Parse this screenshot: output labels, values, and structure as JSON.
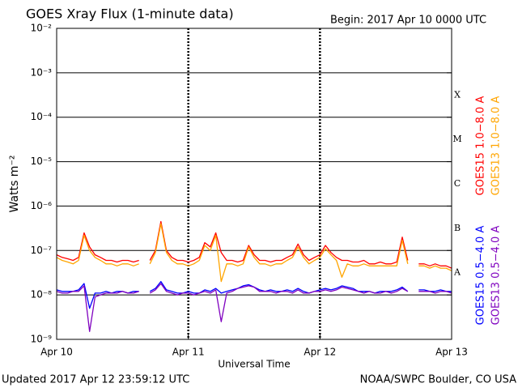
{
  "chart_data": {
    "type": "line",
    "title": "GOES Xray Flux (1-minute data)",
    "subtitle": "Begin:  2017 Apr 10 0000 UTC",
    "y_label": "Watts m⁻²",
    "x_label": "Universal Time",
    "footer_left": "Updated 2017 Apr 12 23:59:12 UTC",
    "footer_right": "NOAA/SWPC Boulder, CO USA",
    "log_y": true,
    "grid": true,
    "xlim": [
      0,
      72
    ],
    "xticks": [
      {
        "value": 0,
        "label": "Apr 10"
      },
      {
        "value": 24,
        "label": "Apr 11"
      },
      {
        "value": 48,
        "label": "Apr 12"
      },
      {
        "value": 72,
        "label": "Apr 13"
      }
    ],
    "ylim": [
      1e-09,
      0.01
    ],
    "yticks": [
      {
        "value": 1e-09,
        "label": "10⁻⁹"
      },
      {
        "value": 1e-08,
        "label": "10⁻⁸"
      },
      {
        "value": 1e-07,
        "label": "10⁻⁷"
      },
      {
        "value": 1e-06,
        "label": "10⁻⁶"
      },
      {
        "value": 1e-05,
        "label": "10⁻⁵"
      },
      {
        "value": 0.0001,
        "label": "10⁻⁴"
      },
      {
        "value": 0.001,
        "label": "10⁻³"
      },
      {
        "value": 0.01,
        "label": "10⁻²"
      }
    ],
    "flare_classes": [
      {
        "label": "A",
        "value": 1e-08
      },
      {
        "label": "B",
        "value": 1e-07
      },
      {
        "label": "C",
        "value": 1e-06
      },
      {
        "label": "M",
        "value": 1e-05
      },
      {
        "label": "X",
        "value": 0.0001
      }
    ],
    "x": [
      0,
      1,
      2,
      3,
      4,
      5,
      6,
      7,
      8,
      9,
      10,
      11,
      12,
      13,
      14,
      15,
      16,
      17,
      18,
      19,
      20,
      21,
      22,
      23,
      24,
      25,
      26,
      27,
      28,
      29,
      30,
      31,
      32,
      33,
      34,
      35,
      36,
      37,
      38,
      39,
      40,
      41,
      42,
      43,
      44,
      45,
      46,
      47,
      48,
      49,
      50,
      51,
      52,
      53,
      54,
      55,
      56,
      57,
      58,
      59,
      60,
      61,
      62,
      63,
      64,
      65,
      66,
      67,
      68,
      69,
      70,
      71,
      72
    ],
    "series": [
      {
        "name": "GOES15 1.0−8.0 A",
        "color": "#ff0000",
        "values": [
          8e-08,
          7e-08,
          6.5e-08,
          6e-08,
          7e-08,
          2.5e-07,
          1.2e-07,
          8e-08,
          7e-08,
          6e-08,
          6e-08,
          5.5e-08,
          6e-08,
          6e-08,
          5.5e-08,
          6e-08,
          null,
          6e-08,
          1e-07,
          4.5e-07,
          1e-07,
          7e-08,
          6e-08,
          6e-08,
          5.5e-08,
          6e-08,
          7e-08,
          1.5e-07,
          1.2e-07,
          2.5e-07,
          9e-08,
          6e-08,
          6e-08,
          5.5e-08,
          6e-08,
          1.3e-07,
          8e-08,
          6e-08,
          6e-08,
          5.5e-08,
          6e-08,
          6e-08,
          7e-08,
          8e-08,
          1.4e-07,
          8e-08,
          6e-08,
          7e-08,
          8e-08,
          1.3e-07,
          9e-08,
          7e-08,
          6e-08,
          6e-08,
          5.5e-08,
          5.5e-08,
          6e-08,
          5e-08,
          5e-08,
          5.5e-08,
          5e-08,
          5e-08,
          5.5e-08,
          2e-07,
          6e-08,
          null,
          5e-08,
          5e-08,
          4.5e-08,
          5e-08,
          4.5e-08,
          4.5e-08,
          4e-08
        ]
      },
      {
        "name": "GOES13 1.0−8.0 A",
        "color": "#ffa500",
        "values": [
          7e-08,
          6e-08,
          5.5e-08,
          5e-08,
          6e-08,
          2.2e-07,
          1e-07,
          7e-08,
          6e-08,
          5e-08,
          5e-08,
          4.5e-08,
          5e-08,
          5e-08,
          4.5e-08,
          5e-08,
          null,
          5e-08,
          9e-08,
          4e-07,
          9e-08,
          6e-08,
          5e-08,
          5e-08,
          4.5e-08,
          5e-08,
          6e-08,
          1.3e-07,
          1e-07,
          2.2e-07,
          2e-08,
          5e-08,
          5e-08,
          4.5e-08,
          5e-08,
          1.2e-07,
          7e-08,
          5e-08,
          5e-08,
          4.5e-08,
          5e-08,
          5e-08,
          6e-08,
          7e-08,
          1.2e-07,
          7e-08,
          5e-08,
          6e-08,
          7e-08,
          1.1e-07,
          8e-08,
          6e-08,
          2.5e-08,
          5e-08,
          4.5e-08,
          4.5e-08,
          5e-08,
          4.5e-08,
          4.5e-08,
          4.5e-08,
          4.5e-08,
          4.5e-08,
          4.5e-08,
          1.7e-07,
          5e-08,
          null,
          4.5e-08,
          4.5e-08,
          4e-08,
          4.5e-08,
          4e-08,
          4e-08,
          3.5e-08
        ]
      },
      {
        "name": "GOES15 0.5−4.0 A",
        "color": "#0000ff",
        "values": [
          1.3e-08,
          1.2e-08,
          1.2e-08,
          1.2e-08,
          1.3e-08,
          1.8e-08,
          5e-09,
          1.1e-08,
          1.1e-08,
          1.2e-08,
          1.1e-08,
          1.2e-08,
          1.2e-08,
          1.1e-08,
          1.2e-08,
          1.2e-08,
          null,
          1.2e-08,
          1.4e-08,
          2e-08,
          1.3e-08,
          1.2e-08,
          1.1e-08,
          1.1e-08,
          1.2e-08,
          1.1e-08,
          1.1e-08,
          1.3e-08,
          1.2e-08,
          1.4e-08,
          1.1e-08,
          1.2e-08,
          1.3e-08,
          1.4e-08,
          1.6e-08,
          1.7e-08,
          1.5e-08,
          1.3e-08,
          1.2e-08,
          1.3e-08,
          1.2e-08,
          1.2e-08,
          1.3e-08,
          1.2e-08,
          1.4e-08,
          1.2e-08,
          1.1e-08,
          1.2e-08,
          1.3e-08,
          1.4e-08,
          1.3e-08,
          1.4e-08,
          1.6e-08,
          1.5e-08,
          1.4e-08,
          1.2e-08,
          1.2e-08,
          1.2e-08,
          1.1e-08,
          1.2e-08,
          1.2e-08,
          1.2e-08,
          1.3e-08,
          1.5e-08,
          1.2e-08,
          null,
          1.3e-08,
          1.3e-08,
          1.2e-08,
          1.2e-08,
          1.3e-08,
          1.2e-08,
          1.2e-08
        ]
      },
      {
        "name": "GOES13 0.5−4.0 A",
        "color": "#7f00bf",
        "values": [
          1.2e-08,
          1.1e-08,
          1.1e-08,
          1.2e-08,
          1.2e-08,
          1.6e-08,
          1.5e-09,
          9e-09,
          1e-08,
          1.1e-08,
          1.1e-08,
          1.1e-08,
          1.2e-08,
          1.1e-08,
          1.1e-08,
          1.2e-08,
          null,
          1.1e-08,
          1.3e-08,
          1.8e-08,
          1.2e-08,
          1.1e-08,
          1e-08,
          1.1e-08,
          1.1e-08,
          1e-08,
          1.1e-08,
          1.2e-08,
          1.1e-08,
          1.3e-08,
          2.5e-09,
          1.1e-08,
          1.2e-08,
          1.4e-08,
          1.5e-08,
          1.6e-08,
          1.5e-08,
          1.2e-08,
          1.2e-08,
          1.2e-08,
          1.1e-08,
          1.2e-08,
          1.2e-08,
          1.1e-08,
          1.3e-08,
          1.1e-08,
          1.1e-08,
          1.2e-08,
          1.2e-08,
          1.3e-08,
          1.2e-08,
          1.3e-08,
          1.5e-08,
          1.4e-08,
          1.3e-08,
          1.2e-08,
          1.1e-08,
          1.2e-08,
          1.1e-08,
          1.1e-08,
          1.2e-08,
          1.1e-08,
          1.2e-08,
          1.4e-08,
          1.2e-08,
          null,
          1.2e-08,
          1.2e-08,
          1.2e-08,
          1.1e-08,
          1.2e-08,
          1.2e-08,
          1.1e-08
        ]
      }
    ]
  }
}
